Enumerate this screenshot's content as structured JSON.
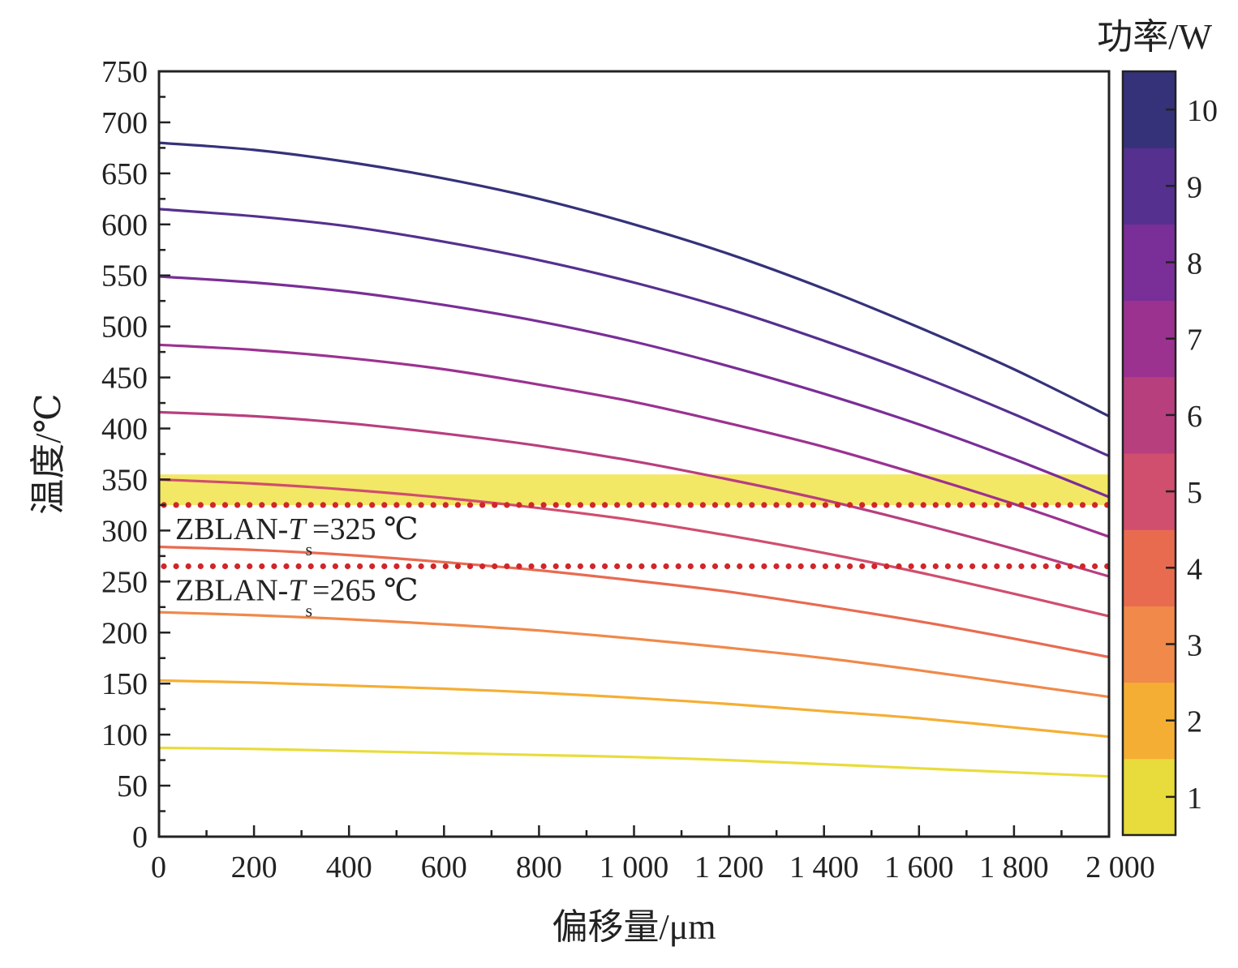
{
  "chart_data": {
    "type": "line",
    "xlabel": "偏移量/μm",
    "ylabel": "温度/℃",
    "xlim": [
      0,
      2000
    ],
    "ylim": [
      0,
      750
    ],
    "x_ticks": [
      "0",
      "200",
      "400",
      "600",
      "800",
      "1 000",
      "1 200",
      "1 400",
      "1 600",
      "1 800",
      "2 000"
    ],
    "x_tick_values": [
      0,
      200,
      400,
      600,
      800,
      1000,
      1200,
      1400,
      1600,
      1800,
      2000
    ],
    "y_ticks": [
      "0",
      "50",
      "100",
      "150",
      "200",
      "250",
      "300",
      "350",
      "400",
      "450",
      "500",
      "550",
      "600",
      "650",
      "700",
      "750"
    ],
    "y_tick_values": [
      0,
      50,
      100,
      150,
      200,
      250,
      300,
      350,
      400,
      450,
      500,
      550,
      600,
      650,
      700,
      750
    ],
    "grid": false,
    "x": [
      0,
      200,
      400,
      600,
      800,
      1000,
      1200,
      1400,
      1600,
      1800,
      2000
    ],
    "series": [
      {
        "name": "1",
        "color": "#e8dc3c",
        "values": [
          87,
          86,
          84,
          82,
          80,
          78,
          75,
          71,
          67,
          63,
          59
        ]
      },
      {
        "name": "2",
        "color": "#f5ae34",
        "values": [
          153,
          151,
          148,
          145,
          141,
          136,
          130,
          123,
          116,
          107,
          98
        ]
      },
      {
        "name": "3",
        "color": "#f0894a",
        "values": [
          220,
          217,
          213,
          208,
          202,
          194,
          185,
          175,
          163,
          150,
          137
        ]
      },
      {
        "name": "4",
        "color": "#e86b50",
        "values": [
          284,
          281,
          276,
          269,
          261,
          251,
          240,
          226,
          211,
          194,
          176
        ]
      },
      {
        "name": "5",
        "color": "#d04e6e",
        "values": [
          350,
          346,
          340,
          332,
          322,
          310,
          295,
          278,
          259,
          238,
          216
        ]
      },
      {
        "name": "6",
        "color": "#b83f7e",
        "values": [
          416,
          412,
          405,
          395,
          383,
          368,
          350,
          330,
          307,
          282,
          255
        ]
      },
      {
        "name": "7",
        "color": "#9c3290",
        "values": [
          482,
          477,
          469,
          458,
          443,
          426,
          405,
          382,
          355,
          326,
          294
        ]
      },
      {
        "name": "8",
        "color": "#7a2e97",
        "values": [
          549,
          543,
          534,
          521,
          505,
          485,
          461,
          434,
          404,
          370,
          333
        ]
      },
      {
        "name": "9",
        "color": "#55308f",
        "values": [
          615,
          608,
          598,
          583,
          565,
          543,
          517,
          486,
          452,
          414,
          373
        ]
      },
      {
        "name": "10",
        "color": "#35327a",
        "values": [
          680,
          673,
          661,
          645,
          625,
          600,
          571,
          537,
          499,
          458,
          412
        ]
      }
    ],
    "highlight_band": {
      "y_from": 325,
      "y_to": 355,
      "color": "#f3e766"
    },
    "reference_lines": [
      {
        "y": 325,
        "label": "ZBLAN-",
        "label_var": "T",
        "label_sub": "s",
        "label_value": "=325 ℃",
        "color": "#d0262a"
      },
      {
        "y": 265,
        "label": "ZBLAN-",
        "label_var": "T",
        "label_sub": "s",
        "label_value": "=265 ℃",
        "color": "#d0262a"
      }
    ],
    "colorbar": {
      "title": "功率/W",
      "levels": [
        "1",
        "2",
        "3",
        "4",
        "5",
        "6",
        "7",
        "8",
        "9",
        "10"
      ],
      "colors": [
        "#e8dc3c",
        "#f5ae34",
        "#f0894a",
        "#e86b50",
        "#d04e6e",
        "#b83f7e",
        "#9c3290",
        "#7a2e97",
        "#55308f",
        "#35327a"
      ]
    }
  }
}
